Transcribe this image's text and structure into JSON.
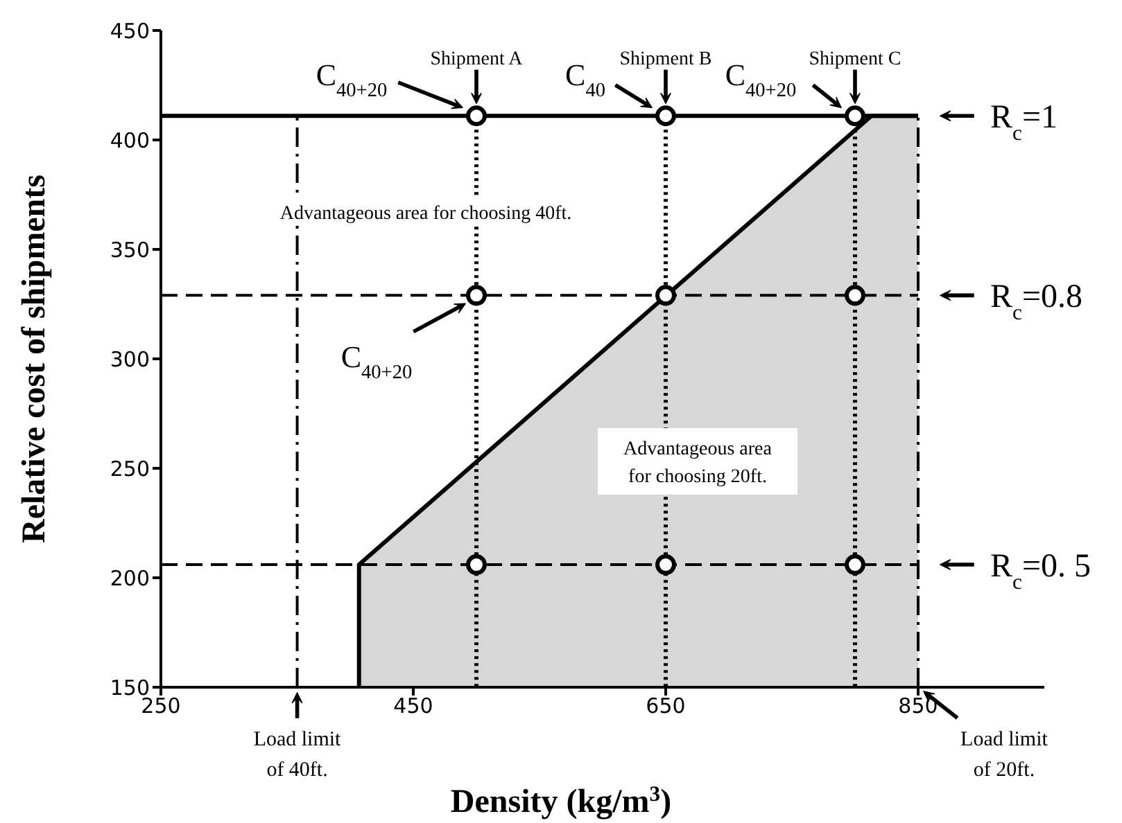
{
  "chart_data": {
    "type": "line",
    "xlabel": "Density (kg/m$^{3}$)",
    "ylabel": "Relative cost of shipments",
    "xlim": [
      250,
      950
    ],
    "xticks": [
      250,
      450,
      650,
      850
    ],
    "ylim": [
      150,
      450
    ],
    "yticks": [
      150,
      200,
      250,
      300,
      350,
      400,
      450
    ],
    "series": [
      {
        "type": "area",
        "color": "#000000",
        "x": [
          407,
          407,
          813,
          850
        ],
        "values": [
          150,
          206,
          411,
          411
        ]
      },
      {
        "type": "line",
        "color": "#000000",
        "line_style": "dotted",
        "x": [
          500,
          500
        ],
        "values": [
          411,
          150
        ]
      },
      {
        "type": "line",
        "color": "#000000",
        "line_style": "dotted",
        "x": [
          650,
          650
        ],
        "values": [
          411,
          150
        ]
      },
      {
        "type": "line",
        "color": "#000000",
        "line_style": "dotted",
        "x": [
          800,
          800
        ],
        "values": [
          411,
          150
        ]
      },
      {
        "type": "scatter",
        "color": "#000000",
        "marker": "circle",
        "x": [
          500,
          650,
          800,
          500,
          650,
          800,
          500,
          650,
          800
        ],
        "values": [
          411,
          411,
          411,
          329,
          329,
          329,
          206,
          206,
          206
        ]
      }
    ],
    "ref_lines": [
      {
        "axis": "y",
        "value": 411,
        "line_style": "solid"
      },
      {
        "axis": "y",
        "value": 329,
        "line_style": "dashed"
      },
      {
        "axis": "y",
        "value": 206,
        "line_style": "dashed"
      },
      {
        "axis": "x",
        "value": 358,
        "label": "Load limit of 40ft.",
        "line_style": "dashdot"
      },
      {
        "axis": "x",
        "value": 850,
        "label": "Load limit of 20ft.",
        "line_style": "dashdot"
      }
    ],
    "annotations": [
      {
        "text": "Shipment A",
        "x": 500,
        "y": 411
      },
      {
        "text": "Shipment B",
        "x": 650,
        "y": 411
      },
      {
        "text": "Shipment C",
        "x": 800,
        "y": 411
      },
      {
        "text": "C$_{40+20}$",
        "x": 500,
        "y": 411
      },
      {
        "text": "C$_{40}$",
        "x": 650,
        "y": 411
      },
      {
        "text": "C$_{40+20}$",
        "x": 800,
        "y": 411
      },
      {
        "text": "C$_{40+20}$",
        "x": 500,
        "y": 329
      },
      "Advantageous area for choosing 40ft.",
      "Advantageous area for choosing 20ft.",
      {
        "text": "R$_{c}$=1",
        "x": 850,
        "y": 411
      },
      {
        "text": "R$_{c}$=0.8",
        "x": 850,
        "y": 329
      },
      {
        "text": "R$_{c}$=0. 5",
        "x": 850,
        "y": 206
      }
    ]
  }
}
